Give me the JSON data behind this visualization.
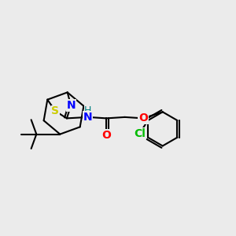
{
  "background_color": "#ebebeb",
  "bond_color": "#000000",
  "bond_lw": 1.5,
  "atom_labels": {
    "S": {
      "color": "#cccc00",
      "fontsize": 10,
      "fontweight": "bold"
    },
    "N": {
      "color": "#0000ff",
      "fontsize": 10,
      "fontweight": "bold"
    },
    "O": {
      "color": "#ff0000",
      "fontsize": 10,
      "fontweight": "bold"
    },
    "Cl": {
      "color": "#00bb00",
      "fontsize": 10,
      "fontweight": "bold"
    },
    "H": {
      "color": "#008080",
      "fontsize": 9,
      "fontweight": "normal"
    }
  },
  "figsize": [
    3.0,
    3.0
  ],
  "dpi": 100
}
